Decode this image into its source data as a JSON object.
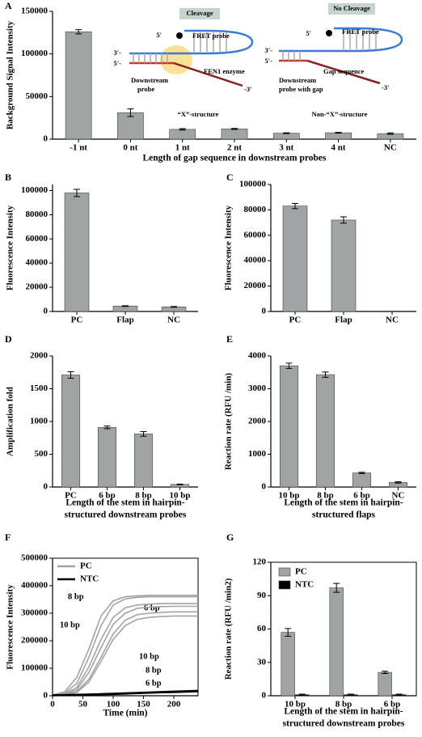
{
  "chart_data": [
    {
      "type": "bar",
      "label": "A",
      "ylabel": "Background Signal Intensity",
      "xlabel": [
        "Length of gap sequence in downstream probes"
      ],
      "categories": [
        "-1 nt",
        "0 nt",
        "1 nt",
        "2 nt",
        "3 nt",
        "4 nt",
        "NC"
      ],
      "values": [
        126000,
        31000,
        11500,
        12000,
        7000,
        7500,
        6500
      ],
      "errors": [
        2500,
        4500,
        800,
        600,
        500,
        500,
        800
      ],
      "color": "#a0a4a4",
      "ylim": [
        0,
        150000
      ],
      "yticks": [
        0,
        50000,
        100000,
        150000
      ],
      "annotations": [
        "Cleavage",
        "FRET probe",
        "3'-",
        "5'-",
        "FEN1 enzyme",
        "Downstream",
        "probe",
        "-3'",
        "“X”-structure",
        "5'",
        "No Cleavage",
        "FRET probe",
        "3'-",
        "5'-",
        "Gap sequence",
        "Downstream",
        "probe with gap",
        "-3'",
        "Non-“X”-structure",
        "5'"
      ]
    },
    {
      "type": "bar",
      "label": "B",
      "ylabel": "Fluorescence Intensity",
      "categories": [
        "PC",
        "Flap",
        "NC"
      ],
      "values": [
        98000,
        4500,
        3800
      ],
      "errors": [
        3000,
        300,
        300
      ],
      "color": "#a0a4a4",
      "ylim": [
        0,
        105000
      ],
      "yticks": [
        0,
        20000,
        40000,
        60000,
        80000,
        100000
      ]
    },
    {
      "type": "bar",
      "label": "C",
      "ylabel": "Fluorescence Intensity",
      "categories": [
        "PC",
        "Flap",
        "NC"
      ],
      "values": [
        83000,
        72000,
        0
      ],
      "errors": [
        2000,
        2500,
        0
      ],
      "color": "#a0a4a4",
      "ylim": [
        0,
        100000
      ],
      "yticks": [
        0,
        20000,
        40000,
        60000,
        80000,
        100000
      ]
    },
    {
      "type": "bar",
      "label": "D",
      "ylabel": "Amplification fold",
      "xlabel": [
        "Length of the stem in hairpin-",
        "structured downstream probes"
      ],
      "categories": [
        "PC",
        "6 bp",
        "8 bp",
        "10 bp"
      ],
      "values": [
        1710,
        910,
        810,
        40
      ],
      "errors": [
        50,
        20,
        35,
        5
      ],
      "color": "#a0a4a4",
      "ylim": [
        0,
        2000
      ],
      "yticks": [
        0,
        500,
        1000,
        1500,
        2000
      ]
    },
    {
      "type": "bar",
      "label": "E",
      "ylabel": "Reaction rate (RFU /min)",
      "xlabel": [
        "Length of the stem in hairpin-",
        "structured flaps"
      ],
      "categories": [
        "10 bp",
        "8 bp",
        "6 bp",
        "NC"
      ],
      "values": [
        3700,
        3430,
        430,
        140
      ],
      "errors": [
        80,
        80,
        20,
        20
      ],
      "color": "#a0a4a4",
      "ylim": [
        0,
        4000
      ],
      "yticks": [
        0,
        1000,
        2000,
        3000,
        4000
      ]
    },
    {
      "type": "line",
      "label": "F",
      "ylabel": "Fluorescence Intensity",
      "xlabel": [
        "Time (min)"
      ],
      "frame": true,
      "x": [
        0,
        20,
        40,
        60,
        80,
        100,
        120,
        140,
        160,
        180,
        200,
        220,
        240
      ],
      "series": [
        {
          "name": "PC",
          "color": "#a0a4a4",
          "curves": [
            [
              3000,
              14000,
              67000,
              170000,
              290000,
              345000,
              360000,
              363000,
              365000,
              365000,
              365000,
              365000,
              365000
            ],
            [
              2000,
              9000,
              45000,
              140000,
              255000,
              330000,
              352000,
              358000,
              360000,
              360000,
              360000,
              360000,
              360000
            ],
            [
              2000,
              6000,
              30000,
              105000,
              205000,
              285000,
              320000,
              330000,
              333000,
              335000,
              335000,
              335000,
              335000
            ],
            [
              2000,
              5000,
              22000,
              85000,
              175000,
              260000,
              300000,
              318000,
              322000,
              324000,
              325000,
              325000,
              325000
            ],
            [
              2000,
              4000,
              15000,
              60000,
              140000,
              225000,
              275000,
              295000,
              300000,
              303000,
              305000,
              305000,
              305000
            ],
            [
              2000,
              4000,
              12000,
              50000,
              125000,
              205000,
              255000,
              278000,
              285000,
              288000,
              290000,
              290000,
              290000
            ]
          ]
        },
        {
          "name": "NTC",
          "color": "#000000",
          "curves": [
            [
              2000,
              3000,
              4000,
              5000,
              6500,
              8000,
              9500,
              11000,
              12500,
              14000,
              15500,
              17000,
              18500
            ],
            [
              2000,
              2500,
              3500,
              4500,
              5500,
              7000,
              8500,
              10000,
              11500,
              13000,
              14500,
              16000,
              17000
            ],
            [
              1500,
              2000,
              3000,
              4000,
              5000,
              6000,
              7500,
              9000,
              10500,
              12000,
              13000,
              14500,
              15500
            ]
          ]
        }
      ],
      "xlim": [
        0,
        240
      ],
      "xticks": [
        0,
        50,
        100,
        150,
        200
      ],
      "ylim": [
        0,
        500000
      ],
      "yticks": [
        0,
        100000,
        200000,
        300000,
        400000,
        500000
      ],
      "annotations": [
        "8 bp",
        "10 bp",
        "6 bp",
        "10 bp",
        "8 bp",
        "6 bp"
      ]
    },
    {
      "type": "bar",
      "label": "G",
      "ylabel": "Reaction rate (RFU /min2)",
      "xlabel": [
        "Length of the stem in hairpin-",
        "structured downstream probes"
      ],
      "frame": true,
      "categories": [
        "10 bp",
        "8 bp",
        "6 bp"
      ],
      "series": [
        {
          "name": "PC",
          "color": "#a0a4a4",
          "values": [
            57,
            97,
            21
          ],
          "errors": [
            3.5,
            4,
            1
          ]
        },
        {
          "name": "NTC",
          "color": "#000000",
          "values": [
            1,
            1,
            1
          ],
          "errors": [
            0.5,
            0.5,
            0.5
          ]
        }
      ],
      "ylim": [
        0,
        120
      ],
      "yticks": [
        0,
        30,
        60,
        90,
        120
      ]
    }
  ]
}
